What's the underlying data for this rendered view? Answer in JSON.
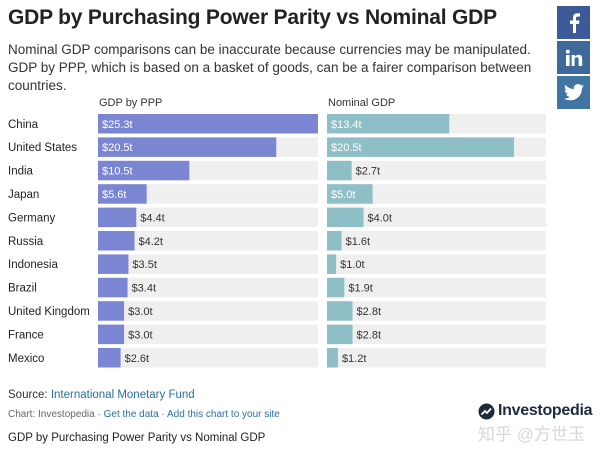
{
  "header": {
    "title": "GDP by Purchasing Power Parity vs Nominal GDP",
    "subtitle": "Nominal GDP comparisons can be inaccurate because currencies may be manipulated. GDP by PPP, which is based on a basket of goods, can be a fairer comparison between countries."
  },
  "social": {
    "facebook_icon": "facebook-icon",
    "linkedin_icon": "linkedin-icon",
    "twitter_icon": "twitter-icon",
    "colors": {
      "facebook": "#3d5a98",
      "linkedin": "#3d6a99",
      "twitter": "#3f74a3"
    }
  },
  "chart_data": {
    "type": "bar",
    "orientation": "horizontal",
    "categories": [
      "China",
      "United States",
      "India",
      "Japan",
      "Germany",
      "Russia",
      "Indonesia",
      "Brazil",
      "United Kingdom",
      "France",
      "Mexico"
    ],
    "series": [
      {
        "name": "GDP by PPP",
        "values": [
          25.3,
          20.5,
          10.5,
          5.6,
          4.4,
          4.2,
          3.5,
          3.4,
          3.0,
          3.0,
          2.6
        ],
        "labels": [
          "$25.3t",
          "$20.5t",
          "$10.5t",
          "$5.6t",
          "$4.4t",
          "$4.2t",
          "$3.5t",
          "$3.4t",
          "$3.0t",
          "$3.0t",
          "$2.6t"
        ],
        "color": "#7b86d2",
        "xlim": [
          0,
          25.3
        ]
      },
      {
        "name": "Nominal GDP",
        "values": [
          13.4,
          20.5,
          2.7,
          5.0,
          4.0,
          1.6,
          1.0,
          1.9,
          2.8,
          2.8,
          1.2
        ],
        "labels": [
          "$13.4t",
          "$20.5t",
          "$2.7t",
          "$5.0t",
          "$4.0t",
          "$1.6t",
          "$1.0t",
          "$1.9t",
          "$2.8t",
          "$2.8t",
          "$1.2t"
        ],
        "color": "#8fbfc6",
        "xlim": [
          0,
          24
        ]
      }
    ],
    "track_color": "#efefef",
    "grid": false,
    "legend": "none"
  },
  "footer": {
    "source_label": "Source: ",
    "source_link": "International Monetary Fund",
    "credit_prefix": "Chart: Investopedia · ",
    "get_data": "Get the data",
    "sep": " · ",
    "add_chart": "Add this chart to your site",
    "brand": "Investopedia",
    "caption": "GDP by Purchasing Power Parity vs Nominal GDP",
    "watermark": "知乎 @方世玉"
  }
}
